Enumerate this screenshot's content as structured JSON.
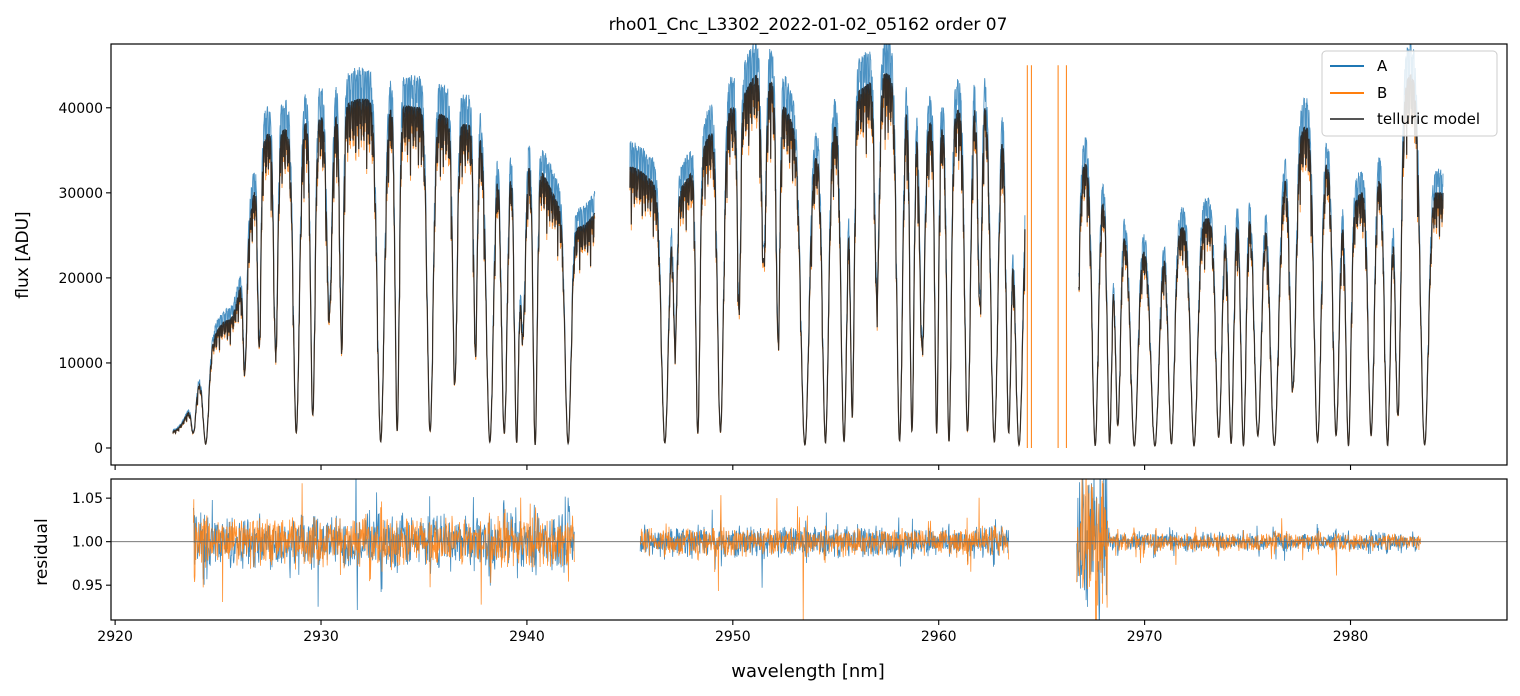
{
  "chart_data": [
    {
      "type": "line",
      "panel": "top",
      "title": "rho01_Cnc_L3302_2022-01-02_05162  order 07",
      "xlabel": "",
      "ylabel": "flux [ADU]",
      "xlim": [
        2919.8,
        2987.6
      ],
      "ylim": [
        -2000,
        47500
      ],
      "yticks": [
        0,
        10000,
        20000,
        30000,
        40000
      ],
      "ytick_labels": [
        "0",
        "10000",
        "20000",
        "30000",
        "40000"
      ],
      "xticks": [
        2920,
        2930,
        2940,
        2950,
        2960,
        2970,
        2980
      ],
      "legend_position": "top-right",
      "series": [
        {
          "name": "A",
          "color": "#1f77b4",
          "scale": 1.08,
          "noise": 900
        },
        {
          "name": "B",
          "color": "#ff7f0e",
          "scale": 0.98,
          "noise": 800
        },
        {
          "name": "telluric model",
          "color": "#222222",
          "scale": 1.0,
          "noise": 0
        }
      ],
      "continuum_knots": {
        "x": [
          2922.8,
          2925.5,
          2927.5,
          2930,
          2932,
          2935,
          2937,
          2940,
          2942.5,
          2945,
          2947,
          2950,
          2951.3,
          2954,
          2956,
          2957.3,
          2960,
          2962,
          2964,
          2966,
          2970,
          2973,
          2976,
          2978,
          2980,
          2981.5,
          2983,
          2984.3
        ],
        "y": [
          2000,
          15000,
          37000,
          39000,
          41000,
          40000,
          38000,
          34000,
          26000,
          33000,
          30000,
          40000,
          44000,
          35000,
          42000,
          44000,
          38000,
          42000,
          38000,
          36000,
          24000,
          27000,
          30000,
          38000,
          29000,
          33000,
          44000,
          30000
        ]
      },
      "absorption_lines": {
        "x": [
          2923.8,
          2924.4,
          2926.3,
          2927.0,
          2927.8,
          2928.8,
          2929.6,
          2930.4,
          2931.0,
          2932.9,
          2933.7,
          2935.3,
          2936.5,
          2937.5,
          2938.2,
          2938.9,
          2939.5,
          2939.8,
          2940.4,
          2942.0,
          2946.7,
          2947.2,
          2948.3,
          2949.4,
          2950.3,
          2951.5,
          2952.2,
          2953.5,
          2954.5,
          2955.4,
          2955.8,
          2957.0,
          2958.1,
          2958.7,
          2959.2,
          2959.9,
          2960.5,
          2961.4,
          2962.0,
          2962.7,
          2963.4,
          2963.9,
          2966.6,
          2967.6,
          2968.3,
          2968.7,
          2969.5,
          2970.5,
          2971.3,
          2972.4,
          2973.6,
          2974.2,
          2974.8,
          2975.5,
          2976.3,
          2977.2,
          2978.4,
          2979.3,
          2979.9,
          2981.0,
          2981.8,
          2982.3,
          2983.6
        ],
        "width": [
          0.22,
          0.28,
          0.18,
          0.16,
          0.2,
          0.3,
          0.22,
          0.25,
          0.18,
          0.35,
          0.2,
          0.3,
          0.22,
          0.18,
          0.35,
          0.28,
          0.22,
          0.25,
          0.2,
          0.3,
          0.35,
          0.18,
          0.2,
          0.3,
          0.16,
          0.22,
          0.18,
          0.4,
          0.3,
          0.3,
          0.2,
          0.22,
          0.28,
          0.2,
          0.25,
          0.18,
          0.22,
          0.28,
          0.2,
          0.35,
          0.25,
          0.4,
          0.35,
          0.3,
          0.22,
          0.25,
          0.35,
          0.4,
          0.3,
          0.35,
          0.3,
          0.25,
          0.25,
          0.35,
          0.4,
          0.3,
          0.35,
          0.3,
          0.25,
          0.3,
          0.3,
          0.28,
          0.4
        ],
        "depth": [
          0.7,
          0.95,
          0.6,
          0.65,
          0.7,
          0.95,
          0.9,
          0.6,
          0.7,
          0.98,
          0.95,
          0.95,
          0.8,
          0.7,
          0.98,
          0.95,
          0.98,
          0.6,
          0.99,
          0.98,
          0.98,
          0.6,
          0.95,
          0.95,
          0.6,
          0.5,
          0.7,
          0.99,
          0.98,
          0.98,
          0.9,
          0.6,
          0.98,
          0.95,
          0.7,
          0.95,
          0.98,
          0.95,
          0.6,
          0.98,
          0.95,
          0.99,
          0.9,
          0.99,
          0.98,
          0.9,
          0.99,
          0.99,
          0.98,
          0.99,
          0.95,
          0.98,
          0.99,
          0.95,
          0.99,
          0.8,
          0.98,
          0.95,
          0.99,
          0.95,
          0.99,
          0.9,
          0.99
        ]
      },
      "data_gaps_x": [
        [
          2943.3,
          2945.0
        ],
        [
          2964.2,
          2966.8
        ],
        [
          2984.5,
          2987.6
        ]
      ]
    },
    {
      "type": "line",
      "panel": "bottom",
      "title": "",
      "xlabel": "wavelength [nm]",
      "ylabel": "residual",
      "xlim": [
        2919.8,
        2987.6
      ],
      "ylim": [
        0.91,
        1.072
      ],
      "yticks": [
        0.95,
        1.0,
        1.05
      ],
      "ytick_labels": [
        "0.95",
        "1.00",
        "1.05"
      ],
      "xticks": [
        2920,
        2930,
        2940,
        2950,
        2960,
        2970,
        2980
      ],
      "xtick_labels": [
        "2920",
        "2930",
        "2940",
        "2950",
        "2960",
        "2970",
        "2980"
      ],
      "reference_line": 1.0,
      "series": [
        {
          "name": "A",
          "color": "#1f77b4"
        },
        {
          "name": "B",
          "color": "#ff7f0e"
        }
      ],
      "segments": [
        {
          "x": [
            2923.8,
            2942.3
          ],
          "amplitude": 0.035
        },
        {
          "x": [
            2945.5,
            2963.4
          ],
          "amplitude": 0.02
        },
        {
          "x": [
            2966.7,
            2968.2
          ],
          "amplitude": 0.09
        },
        {
          "x": [
            2968.2,
            2983.4
          ],
          "amplitude": 0.012
        }
      ]
    }
  ],
  "legend": {
    "items": [
      {
        "label": "A",
        "color": "#1f77b4"
      },
      {
        "label": "B",
        "color": "#ff7f0e"
      },
      {
        "label": "telluric model",
        "color": "#555555"
      }
    ]
  }
}
